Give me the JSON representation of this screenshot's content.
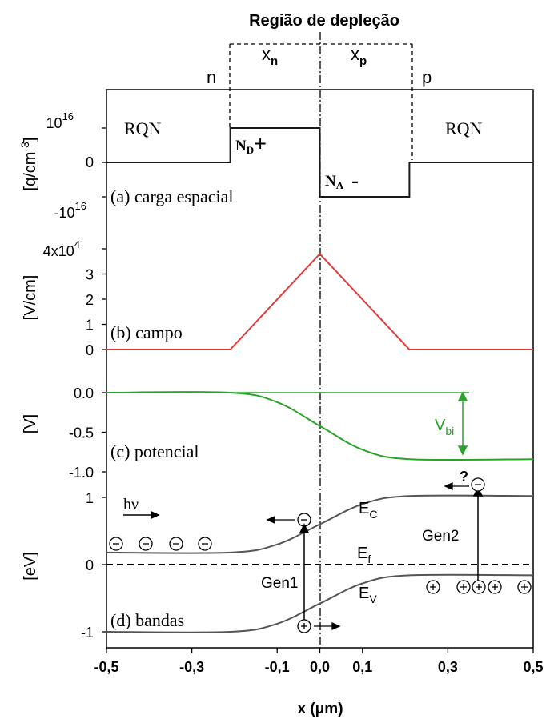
{
  "title": "Região de depleção",
  "colors": {
    "charge": "#1a1a1a",
    "field": "#e03a3a",
    "potential": "#2aa32a",
    "bands": "#555555",
    "axis": "#000000"
  },
  "xaxis": {
    "label_prefix": "x (",
    "label_unit": "μm",
    "label_suffix": ")",
    "ticks": [
      {
        "v": -0.5,
        "label": "-0,5"
      },
      {
        "v": -0.3,
        "label": "-0,3"
      },
      {
        "v": -0.1,
        "label": "-0,1"
      },
      {
        "v": 0.0,
        "label": "0,0"
      },
      {
        "v": 0.1,
        "label": "0,1"
      },
      {
        "v": 0.3,
        "label": "0,3"
      },
      {
        "v": 0.5,
        "label": "0,5"
      }
    ]
  },
  "top_labels": {
    "xn": "x",
    "xn_sub": "n",
    "xp": "x",
    "xp_sub": "p",
    "n": "n",
    "p": "p"
  },
  "panels": {
    "charge": {
      "ylabel": "[q/cm",
      "ylabel_sup": "-3",
      "ylabel_end": "]",
      "tick_top_base": "10",
      "tick_top_exp": "16",
      "tick_zero": "0",
      "tick_bottom_base": "-10",
      "tick_bottom_exp": "16",
      "rqn_left": "RQN",
      "rqn_right": "RQN",
      "nd": "N",
      "nd_sub": "D",
      "nd_sign": "+",
      "na": "N",
      "na_sub": "A",
      "na_sign": "-",
      "caption": "(a) carga espacial"
    },
    "field": {
      "ylabel": "[V/cm]",
      "ticks": [
        {
          "v": 0,
          "label": "0"
        },
        {
          "v": 1,
          "label": "1"
        },
        {
          "v": 2,
          "label": "2"
        },
        {
          "v": 3,
          "label": "3"
        }
      ],
      "top_tick_base": "4x10",
      "top_tick_exp": "4",
      "caption": "(b) campo"
    },
    "potential": {
      "ylabel": "[V]",
      "ticks": [
        {
          "v": 0.0,
          "label": "0.0"
        },
        {
          "v": -0.5,
          "label": "-0.5"
        },
        {
          "v": -1.0,
          "label": "-1.0"
        }
      ],
      "vbi": "V",
      "vbi_sub": "bi",
      "caption": "(c) potencial"
    },
    "bands": {
      "ylabel": "[eV]",
      "ticks": [
        {
          "v": 1,
          "label": "1"
        },
        {
          "v": 0,
          "label": "0"
        },
        {
          "v": -1,
          "label": "-1"
        }
      ],
      "ec": "E",
      "ec_sub": "C",
      "ef": "E",
      "ef_sub": "f",
      "ev": "E",
      "ev_sub": "V",
      "hv": "hν",
      "gen1": "Gen1",
      "gen2": "Gen2",
      "question": "?",
      "caption": "(d) bandas"
    }
  },
  "chart_data": [
    {
      "type": "line",
      "name": "carga espacial",
      "ylabel": "[q/cm-3]",
      "x": [
        -0.5,
        -0.21,
        -0.21,
        0.0,
        0.0,
        0.21,
        0.21,
        0.5
      ],
      "y": [
        0,
        0,
        1e+16,
        1e+16,
        -1e+16,
        -1e+16,
        0,
        0
      ],
      "xlim": [
        -0.5,
        0.5
      ],
      "ylim": [
        -1.5e+16,
        1.5e+16
      ]
    },
    {
      "type": "line",
      "name": "campo",
      "ylabel": "[V/cm]",
      "x": [
        -0.5,
        -0.21,
        0.0,
        0.21,
        0.5
      ],
      "y": [
        0,
        0,
        38000,
        0,
        0
      ],
      "xlim": [
        -0.5,
        0.5
      ],
      "ylim": [
        0,
        40000
      ]
    },
    {
      "type": "line",
      "name": "potencial",
      "ylabel": "[V]",
      "x": [
        -0.5,
        -0.21,
        -0.1,
        0.0,
        0.1,
        0.21,
        0.5
      ],
      "y": [
        0.0,
        0.0,
        -0.12,
        -0.42,
        -0.72,
        -0.84,
        -0.84
      ],
      "xlim": [
        -0.5,
        0.5
      ],
      "ylim": [
        -1.2,
        0.1
      ]
    },
    {
      "type": "line",
      "name": "bandas",
      "ylabel": "[eV]",
      "series": [
        {
          "name": "E_C",
          "x": [
            -0.5,
            -0.21,
            -0.1,
            0.0,
            0.1,
            0.21,
            0.5
          ],
          "y": [
            0.18,
            0.18,
            0.3,
            0.6,
            0.9,
            1.02,
            1.02
          ]
        },
        {
          "name": "E_V",
          "x": [
            -0.5,
            -0.21,
            -0.1,
            0.0,
            0.1,
            0.21,
            0.5
          ],
          "y": [
            -1.0,
            -1.0,
            -0.88,
            -0.58,
            -0.28,
            -0.16,
            -0.16
          ]
        },
        {
          "name": "E_f",
          "x": [
            -0.5,
            0.5
          ],
          "y": [
            0.0,
            0.0
          ]
        }
      ],
      "xlim": [
        -0.5,
        0.5
      ],
      "ylim": [
        -1.25,
        1.25
      ]
    }
  ]
}
